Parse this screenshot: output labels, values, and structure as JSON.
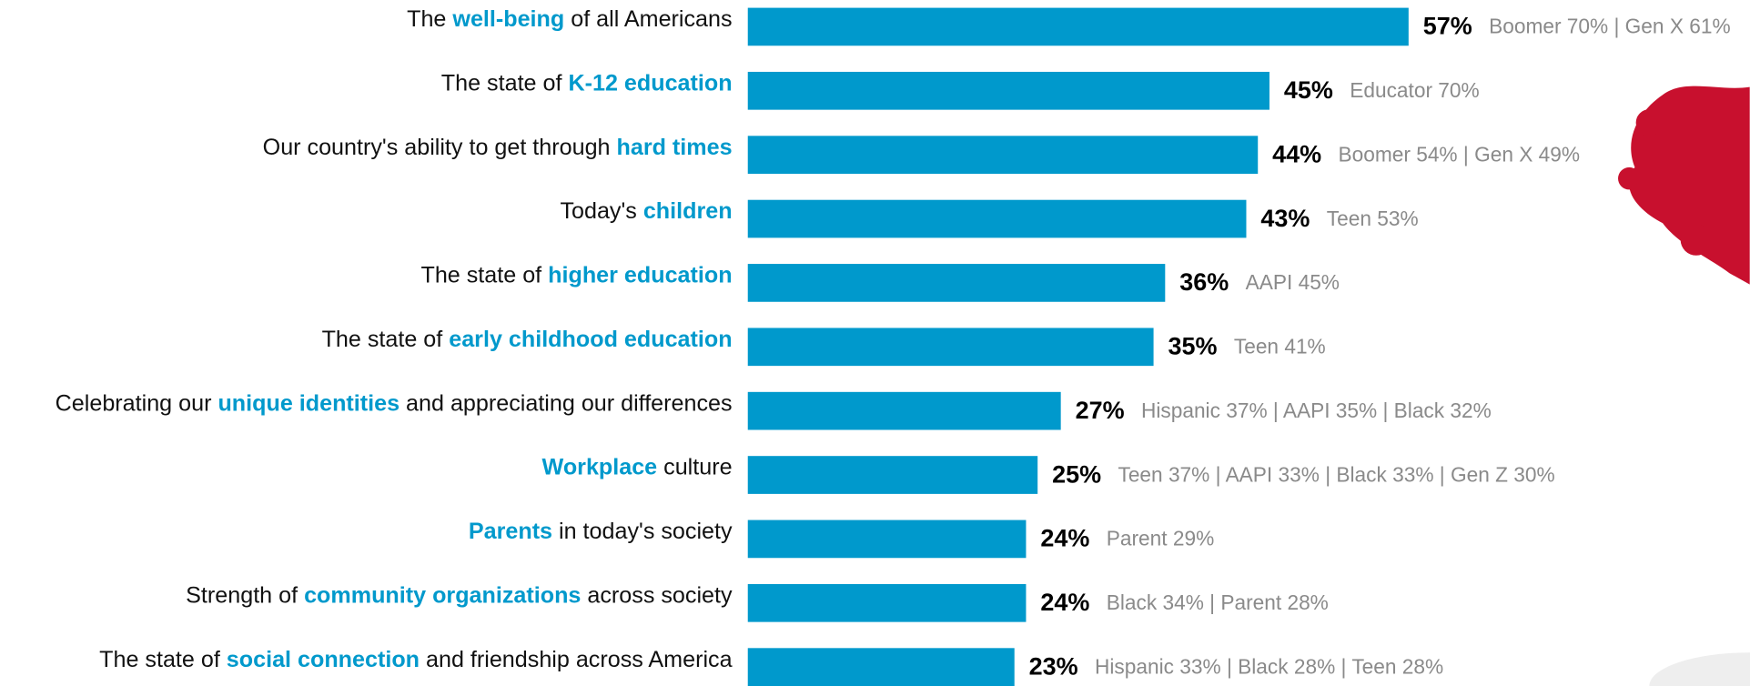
{
  "chart_data": {
    "type": "bar",
    "orientation": "horizontal",
    "color": "#0099cc",
    "categories": [
      [
        "The ",
        "well-being",
        " of all Americans"
      ],
      [
        "The state of ",
        "K-12 education"
      ],
      [
        "Our country's ability to get through ",
        "hard times"
      ],
      [
        "Today's ",
        "children"
      ],
      [
        "The state of ",
        "higher education"
      ],
      [
        "The state of ",
        "early childhood education"
      ],
      [
        "Celebrating our ",
        "unique identities",
        " and appreciating our differences"
      ],
      [
        "Workplace",
        " culture"
      ],
      [
        "Parents",
        " in today's society"
      ],
      [
        "Strength of ",
        "community organizations",
        " across society"
      ],
      [
        "The state of ",
        "social connection",
        " and friendship across America"
      ]
    ],
    "highlight_index": [
      1,
      1,
      1,
      1,
      1,
      1,
      1,
      0,
      0,
      1,
      1
    ],
    "values": [
      57,
      45,
      44,
      43,
      36,
      35,
      27,
      25,
      24,
      24,
      23
    ],
    "value_labels": [
      "57%",
      "45%",
      "44%",
      "43%",
      "36%",
      "35%",
      "27%",
      "25%",
      "24%",
      "24%",
      "23%"
    ],
    "annotations": [
      "Boomer 70% | Gen X 61%",
      "Educator 70%",
      "Boomer 54% | Gen X 49%",
      "Teen 53%",
      "AAPI 45%",
      "Teen 41%",
      "Hispanic 37% | AAPI 35% | Black 32%",
      "Teen 37% | AAPI 33% | Black 33% | Gen Z 30%",
      "Parent 29%",
      "Black 34% | Parent 28%",
      "Hispanic 33% | Black 28% | Teen 28%"
    ],
    "xlim": [
      0,
      100
    ]
  }
}
